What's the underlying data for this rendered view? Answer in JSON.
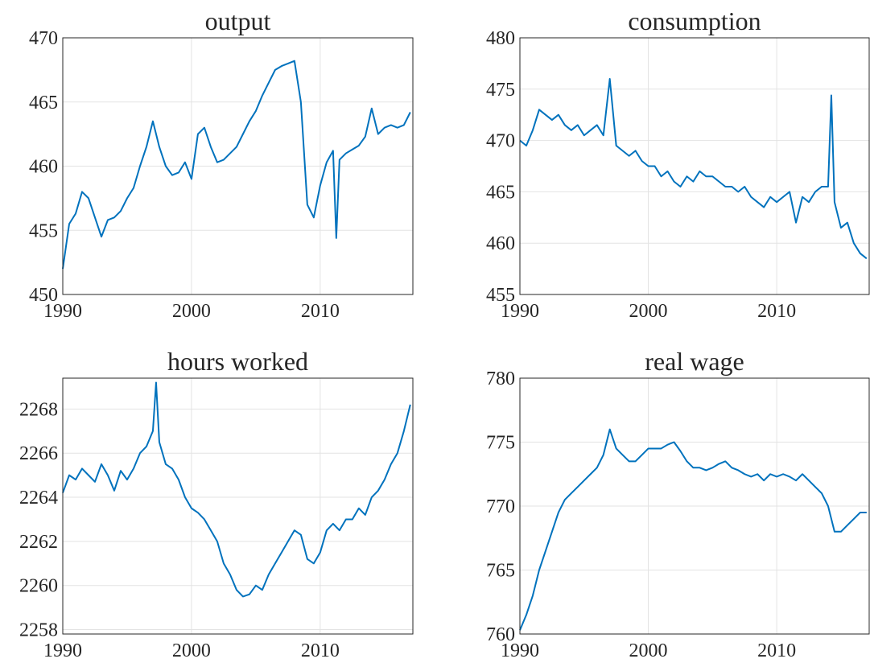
{
  "chart_data": [
    {
      "type": "line",
      "title": "output",
      "color": "#0072bd",
      "grid": true,
      "xlim": [
        1990,
        2017.2
      ],
      "xticks": [
        1990,
        2000,
        2010
      ],
      "ylim": [
        450,
        470
      ],
      "yticks": [
        450,
        455,
        460,
        465,
        470
      ],
      "x": [
        1990,
        1990.5,
        1991,
        1991.5,
        1992,
        1992.5,
        1993,
        1993.5,
        1994,
        1994.5,
        1995,
        1995.5,
        1996,
        1996.5,
        1997,
        1997.5,
        1998,
        1998.5,
        1999,
        1999.5,
        2000,
        2000.5,
        2001,
        2001.5,
        2002,
        2002.5,
        2003,
        2003.5,
        2004,
        2004.5,
        2005,
        2005.5,
        2006,
        2006.5,
        2007,
        2007.5,
        2008,
        2008.5,
        2009,
        2009.5,
        2010,
        2010.5,
        2011,
        2011.25,
        2011.5,
        2012,
        2012.5,
        2013,
        2013.5,
        2014,
        2014.5,
        2015,
        2015.5,
        2016,
        2016.5,
        2017
      ],
      "values": [
        452,
        455.5,
        456.3,
        458,
        457.5,
        456,
        454.5,
        455.8,
        456,
        456.5,
        457.5,
        458.3,
        460,
        461.5,
        463.5,
        461.5,
        460,
        459.3,
        459.5,
        460.3,
        459,
        462.5,
        463,
        461.5,
        460.3,
        460.5,
        461,
        461.5,
        462.5,
        463.5,
        464.3,
        465.5,
        466.5,
        467.5,
        467.8,
        468,
        468.2,
        465,
        457,
        456,
        458.5,
        460.3,
        461.2,
        454.4,
        460.5,
        461,
        461.3,
        461.6,
        462.3,
        464.5,
        462.5,
        463,
        463.2,
        463,
        463.2,
        464.2
      ]
    },
    {
      "type": "line",
      "title": "consumption",
      "color": "#0072bd",
      "grid": true,
      "xlim": [
        1990,
        2017.2
      ],
      "xticks": [
        1990,
        2000,
        2010
      ],
      "ylim": [
        455,
        480
      ],
      "yticks": [
        455,
        460,
        465,
        470,
        475,
        480
      ],
      "x": [
        1990,
        1990.5,
        1991,
        1991.5,
        1992,
        1992.5,
        1993,
        1993.5,
        1994,
        1994.5,
        1995,
        1995.5,
        1996,
        1996.5,
        1997,
        1997.5,
        1998,
        1998.5,
        1999,
        1999.5,
        2000,
        2000.5,
        2001,
        2001.5,
        2002,
        2002.5,
        2003,
        2003.5,
        2004,
        2004.5,
        2005,
        2005.5,
        2006,
        2006.5,
        2007,
        2007.5,
        2008,
        2008.5,
        2009,
        2009.5,
        2010,
        2010.5,
        2011,
        2011.5,
        2012,
        2012.5,
        2013,
        2013.5,
        2014,
        2014.25,
        2014.5,
        2015,
        2015.5,
        2016,
        2016.5,
        2017
      ],
      "values": [
        470,
        469.5,
        471,
        473,
        472.5,
        472,
        472.5,
        471.5,
        471,
        471.5,
        470.5,
        471,
        471.5,
        470.5,
        476,
        469.5,
        469,
        468.5,
        469,
        468,
        467.5,
        467.5,
        466.5,
        467,
        466,
        465.5,
        466.5,
        466,
        467,
        466.5,
        466.5,
        466,
        465.5,
        465.5,
        465,
        465.5,
        464.5,
        464,
        463.5,
        464.5,
        464,
        464.5,
        465,
        462,
        464.5,
        464,
        465,
        465.5,
        465.5,
        474.4,
        464,
        461.5,
        462,
        460,
        459,
        458.5
      ]
    },
    {
      "type": "line",
      "title": "hours worked",
      "color": "#0072bd",
      "grid": true,
      "xlim": [
        1990,
        2017.2
      ],
      "xticks": [
        1990,
        2000,
        2010
      ],
      "ylim": [
        2257.8,
        2269.4
      ],
      "yticks": [
        2258,
        2260,
        2262,
        2264,
        2266,
        2268
      ],
      "x": [
        1990,
        1990.5,
        1991,
        1991.5,
        1992,
        1992.5,
        1993,
        1993.5,
        1994,
        1994.5,
        1995,
        1995.5,
        1996,
        1996.5,
        1997,
        1997.25,
        1997.5,
        1998,
        1998.5,
        1999,
        1999.5,
        2000,
        2000.5,
        2001,
        2001.5,
        2002,
        2002.5,
        2003,
        2003.5,
        2004,
        2004.5,
        2005,
        2005.5,
        2006,
        2006.5,
        2007,
        2007.5,
        2008,
        2008.5,
        2009,
        2009.5,
        2010,
        2010.5,
        2011,
        2011.5,
        2012,
        2012.5,
        2013,
        2013.5,
        2014,
        2014.5,
        2015,
        2015.5,
        2016,
        2016.5,
        2017
      ],
      "values": [
        2264.2,
        2265,
        2264.8,
        2265.3,
        2265,
        2264.7,
        2265.5,
        2265,
        2264.3,
        2265.2,
        2264.8,
        2265.3,
        2266,
        2266.3,
        2267,
        2269.2,
        2266.5,
        2265.5,
        2265.3,
        2264.8,
        2264,
        2263.5,
        2263.3,
        2263,
        2262.5,
        2262,
        2261,
        2260.5,
        2259.8,
        2259.5,
        2259.6,
        2260,
        2259.8,
        2260.5,
        2261,
        2261.5,
        2262,
        2262.5,
        2262.3,
        2261.2,
        2261,
        2261.5,
        2262.5,
        2262.8,
        2262.5,
        2263,
        2263,
        2263.5,
        2263.2,
        2264,
        2264.3,
        2264.8,
        2265.5,
        2266,
        2267,
        2268.2
      ]
    },
    {
      "type": "line",
      "title": "real wage",
      "color": "#0072bd",
      "grid": true,
      "xlim": [
        1990,
        2017.2
      ],
      "xticks": [
        1990,
        2000,
        2010
      ],
      "ylim": [
        760,
        780
      ],
      "yticks": [
        760,
        765,
        770,
        775,
        780
      ],
      "x": [
        1990,
        1990.5,
        1991,
        1991.5,
        1992,
        1992.5,
        1993,
        1993.5,
        1994,
        1994.5,
        1995,
        1995.5,
        1996,
        1996.5,
        1997,
        1997.5,
        1998,
        1998.5,
        1999,
        1999.5,
        2000,
        2000.5,
        2001,
        2001.5,
        2002,
        2002.5,
        2003,
        2003.5,
        2004,
        2004.5,
        2005,
        2005.5,
        2006,
        2006.5,
        2007,
        2007.5,
        2008,
        2008.5,
        2009,
        2009.5,
        2010,
        2010.5,
        2011,
        2011.5,
        2012,
        2012.5,
        2013,
        2013.5,
        2014,
        2014.5,
        2015,
        2015.5,
        2016,
        2016.5,
        2017
      ],
      "values": [
        760.3,
        761.5,
        763,
        765,
        766.5,
        768,
        769.5,
        770.5,
        771,
        771.5,
        772,
        772.5,
        773,
        774,
        776,
        774.5,
        774,
        773.5,
        773.5,
        774,
        774.5,
        774.5,
        774.5,
        774.8,
        775,
        774.3,
        773.5,
        773,
        773,
        772.8,
        773,
        773.3,
        773.5,
        773,
        772.8,
        772.5,
        772.3,
        772.5,
        772,
        772.5,
        772.3,
        772.5,
        772.3,
        772,
        772.5,
        772,
        771.5,
        771,
        770,
        768,
        768,
        768.5,
        769,
        769.5,
        769.5
      ]
    }
  ]
}
